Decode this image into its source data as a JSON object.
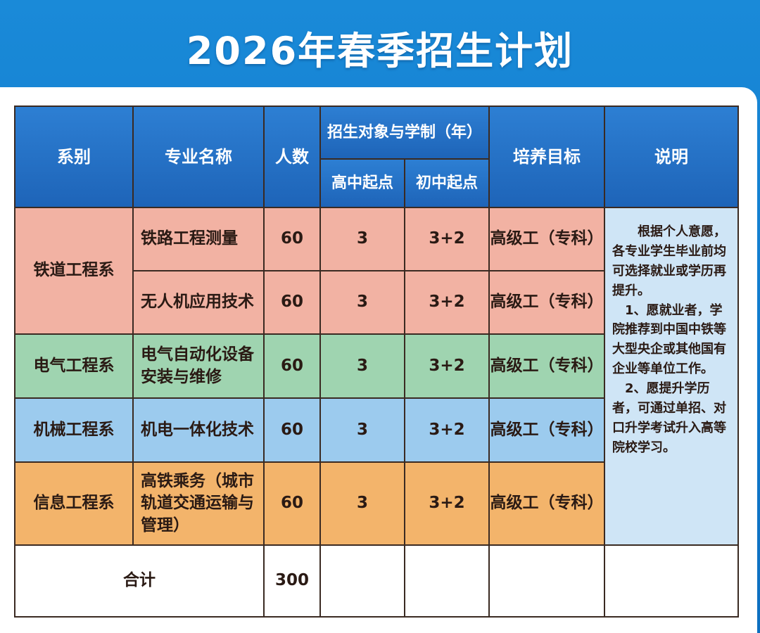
{
  "title": "2026年春季招生计划",
  "colors": {
    "header": "#2270c4",
    "railway": "#f2b2a3",
    "electrical": "#9fd4b0",
    "mechanical": "#9ccbee",
    "information": "#f3b46b",
    "note_bg": "#cfe5f6"
  },
  "header": {
    "department": "系别",
    "major": "专业名称",
    "count": "人数",
    "admission": "招生对象与学制（年）",
    "high_school": "高中起点",
    "junior_school": "初中起点",
    "goal": "培养目标",
    "note": "说明"
  },
  "rows": [
    {
      "department": "铁道工程系",
      "major": "铁路工程测量",
      "count": "60",
      "high_school": "3",
      "junior_school": "3+2",
      "goal": "高级工（专科）"
    },
    {
      "department": "铁道工程系",
      "major": "无人机应用技术",
      "count": "60",
      "high_school": "3",
      "junior_school": "3+2",
      "goal": "高级工（专科）"
    },
    {
      "department": "电气工程系",
      "major": "电气自动化设备安装与维修",
      "count": "60",
      "high_school": "3",
      "junior_school": "3+2",
      "goal": "高级工（专科）"
    },
    {
      "department": "机械工程系",
      "major": "机电一体化技术",
      "count": "60",
      "high_school": "3",
      "junior_school": "3+2",
      "goal": "高级工（专科）"
    },
    {
      "department": "信息工程系",
      "major": "高铁乘务（城市轨道交通运输与管理）",
      "count": "60",
      "high_school": "3",
      "junior_school": "3+2",
      "goal": "高级工（专科）"
    }
  ],
  "note": {
    "intro": "根据个人意愿，各专业学生毕业前均可选择就业或学历再提升。",
    "item1": "1、愿就业者，学院推荐到中国中铁等大型央企或其他国有企业等单位工作。",
    "item2": "2、愿提升学历者，可通过单招、对口升学考试升入高等院校学习。"
  },
  "total": {
    "label": "合计",
    "count": "300"
  }
}
